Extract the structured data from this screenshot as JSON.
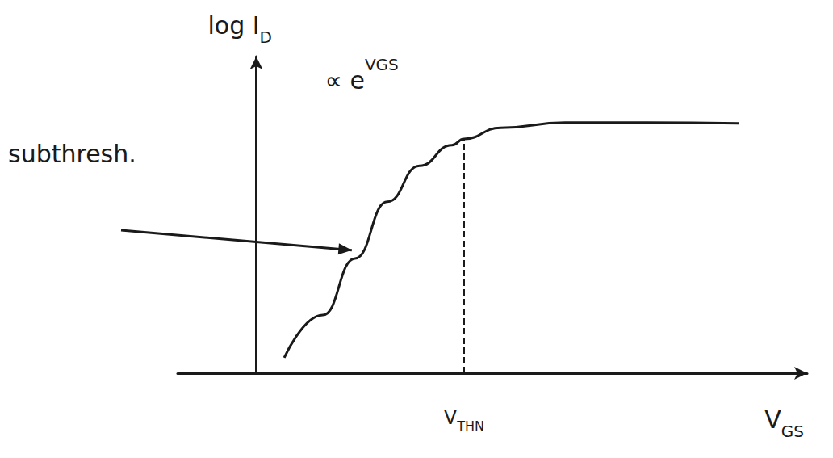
{
  "chart_data": {
    "type": "line",
    "x": [
      0.71,
      1.69,
      2.51,
      3.33,
      4.15,
      4.97,
      5.28,
      6.21,
      7.85,
      9.9,
      12.26
    ],
    "values": [
      0.39,
      1.47,
      2.9,
      4.33,
      5.24,
      5.76,
      5.92,
      6.2,
      6.33,
      6.33,
      6.31
    ],
    "color": "#1a1a1a",
    "line_style": "solid",
    "xlim": [
      -2,
      14
    ],
    "ylim": [
      0,
      8
    ],
    "tick_labels": false,
    "grid": false,
    "xlabel": {
      "text": "V",
      "subscript": "GS"
    },
    "ylabel": {
      "text": "log I",
      "subscript": "D"
    },
    "annotations": [
      {
        "text": "∝ e",
        "superscript": "VGS"
      },
      {
        "text": "subthresh.",
        "x": 2.51,
        "y": 3.1
      }
    ],
    "threshold": {
      "x": 5.28,
      "label": {
        "text": "V",
        "subscript": "THN"
      },
      "line_style": "dashed"
    }
  }
}
